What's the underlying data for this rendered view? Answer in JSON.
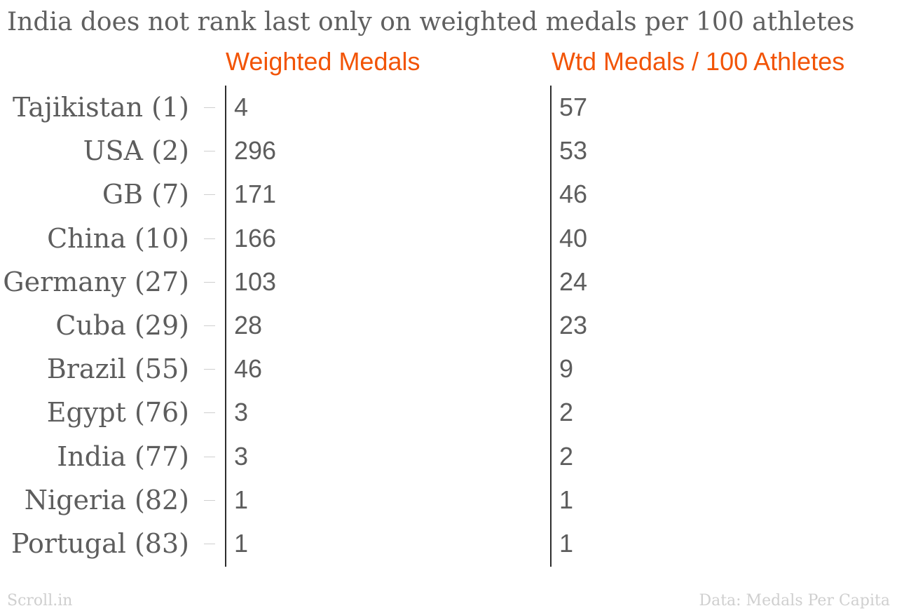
{
  "chart_data": {
    "type": "table",
    "title": "India does not rank last only on weighted medals per 100 athletes",
    "columns": [
      "Weighted Medals",
      "Wtd Medals / 100 Athletes"
    ],
    "rows": [
      {
        "label": "Tajikistan (1)",
        "weighted_medals": "4",
        "per_100": "57"
      },
      {
        "label": "USA (2)",
        "weighted_medals": "296",
        "per_100": "53"
      },
      {
        "label": "GB (7)",
        "weighted_medals": "171",
        "per_100": "46"
      },
      {
        "label": "China (10)",
        "weighted_medals": "166",
        "per_100": "40"
      },
      {
        "label": "Germany (27)",
        "weighted_medals": "103",
        "per_100": "24"
      },
      {
        "label": "Cuba (29)",
        "weighted_medals": "28",
        "per_100": "23"
      },
      {
        "label": "Brazil (55)",
        "weighted_medals": "46",
        "per_100": "9"
      },
      {
        "label": "Egypt (76)",
        "weighted_medals": "3",
        "per_100": "2"
      },
      {
        "label": "India (77)",
        "weighted_medals": "3",
        "per_100": "2"
      },
      {
        "label": "Nigeria (82)",
        "weighted_medals": "1",
        "per_100": "1"
      },
      {
        "label": "Portugal (83)",
        "weighted_medals": "1",
        "per_100": "1"
      }
    ],
    "colors": {
      "header": "#f25406",
      "text": "#5d5d5d",
      "axis": "#2d2d2d",
      "footer": "#cfcfcf"
    }
  },
  "footer": {
    "source_left": "Scroll.in",
    "source_right": "Data: Medals Per Capita"
  }
}
